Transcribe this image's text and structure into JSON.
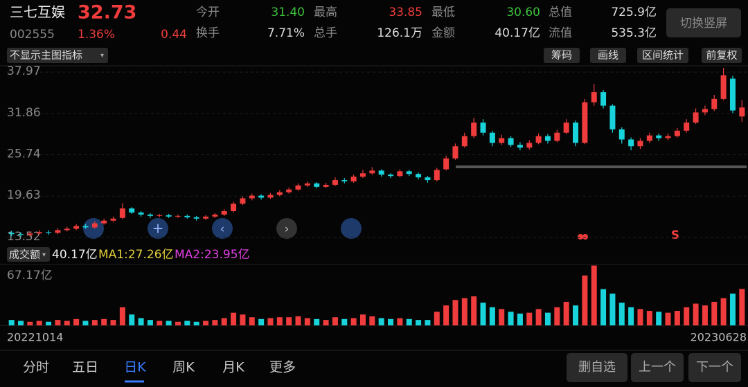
{
  "header": {
    "name": "三七互娱",
    "price": "32.73",
    "code": "002555",
    "change_pct": "1.36%",
    "change": "0.44",
    "stats": [
      {
        "label": "今开",
        "value": "31.40"
      },
      {
        "label": "最高",
        "value": "33.85"
      },
      {
        "label": "最低",
        "value": "30.60"
      },
      {
        "label": "总值",
        "value": "725.9亿"
      },
      {
        "label": "换手",
        "value": "7.71%"
      },
      {
        "label": "总手",
        "value": "126.1万"
      },
      {
        "label": "金额",
        "value": "40.17亿"
      },
      {
        "label": "流值",
        "value": "535.3亿"
      }
    ],
    "button": "切换竖屏"
  },
  "toolbar": {
    "indicator": "不显示主图指标",
    "buttons": [
      "筹码",
      "画线",
      "区间统计",
      "前复权"
    ]
  },
  "volume_header": {
    "label": "成交额",
    "value": "40.17亿",
    "ma1": "MA1:27.26亿",
    "ma2": "MA2:23.95亿"
  },
  "signal": "S",
  "tabs": [
    "分时",
    "五日",
    "日K",
    "周K",
    "月K",
    "更多"
  ],
  "actions": [
    "删自选",
    "上一个",
    "下一个"
  ],
  "chart_data": {
    "type": "candlestick",
    "categories": [
      "20221014",
      null,
      null,
      null,
      null,
      null,
      null,
      null,
      null,
      null,
      null,
      null,
      null,
      null,
      null,
      null,
      null,
      null,
      null,
      null,
      null,
      null,
      null,
      null,
      null,
      null,
      null,
      null,
      null,
      null,
      null,
      null,
      null,
      null,
      null,
      null,
      null,
      null,
      null,
      null,
      null,
      null,
      null,
      null,
      null,
      null,
      null,
      null,
      null,
      null,
      null,
      null,
      null,
      null,
      null,
      null,
      null,
      null,
      null,
      null,
      null,
      null,
      null,
      null,
      null,
      null,
      null,
      null,
      null,
      null,
      null,
      null,
      null,
      null,
      null,
      null,
      null,
      null,
      null,
      "20230628"
    ],
    "open": [
      14.2,
      14.0,
      13.9,
      14.1,
      14.3,
      14.2,
      14.6,
      14.8,
      15.2,
      15.0,
      15.6,
      16.0,
      16.4,
      17.8,
      17.2,
      16.9,
      16.7,
      16.8,
      16.6,
      16.7,
      16.5,
      16.3,
      16.6,
      16.9,
      17.4,
      18.5,
      19.3,
      19.7,
      19.4,
      19.8,
      20.2,
      20.6,
      21.2,
      21.5,
      21.0,
      21.3,
      22.0,
      21.8,
      22.5,
      23.0,
      23.4,
      22.8,
      22.6,
      23.3,
      22.9,
      22.4,
      22.0,
      23.6,
      25.2,
      27.0,
      28.5,
      30.5,
      29.0,
      27.5,
      28.2,
      27.2,
      26.8,
      27.5,
      28.5,
      27.8,
      29.0,
      30.5,
      27.5,
      33.5,
      35.0,
      33.0,
      29.5,
      28.0,
      27.0,
      27.8,
      28.6,
      28.2,
      28.5,
      29.3,
      30.5,
      32.0,
      32.5,
      34.0,
      37.0,
      31.4
    ],
    "high": [
      14.5,
      14.3,
      14.4,
      14.6,
      14.6,
      14.9,
      15.1,
      15.5,
      15.5,
      15.9,
      16.3,
      16.6,
      18.6,
      18.0,
      17.4,
      17.1,
      17.0,
      17.0,
      16.9,
      16.9,
      16.7,
      16.8,
      17.1,
      17.7,
      18.8,
      19.6,
      20.0,
      19.9,
      20.1,
      20.5,
      20.9,
      21.5,
      21.8,
      21.7,
      21.6,
      22.4,
      22.3,
      22.8,
      23.5,
      23.9,
      23.6,
      23.0,
      23.6,
      23.5,
      23.1,
      22.6,
      23.8,
      25.6,
      27.4,
      29.0,
      31.2,
      31.0,
      29.3,
      28.7,
      28.5,
      27.6,
      27.9,
      28.9,
      28.8,
      29.4,
      31.0,
      30.8,
      34.0,
      36.2,
      35.3,
      33.2,
      29.8,
      28.3,
      28.2,
      29.0,
      28.9,
      28.9,
      29.7,
      31.0,
      32.6,
      33.0,
      34.6,
      38.6,
      37.4,
      33.85
    ],
    "low": [
      13.7,
      13.6,
      13.6,
      13.9,
      13.9,
      14.0,
      14.4,
      14.6,
      14.8,
      14.8,
      15.4,
      15.8,
      16.2,
      17.0,
      16.6,
      16.4,
      16.5,
      16.4,
      16.4,
      16.3,
      16.0,
      16.1,
      16.4,
      16.7,
      17.2,
      18.3,
      19.0,
      19.1,
      19.2,
      19.6,
      20.0,
      20.4,
      21.0,
      20.8,
      20.8,
      21.1,
      21.5,
      21.6,
      22.3,
      22.8,
      22.5,
      22.3,
      22.4,
      22.6,
      22.1,
      21.6,
      21.8,
      23.4,
      25.0,
      26.8,
      28.2,
      28.6,
      27.0,
      27.2,
      26.9,
      26.4,
      26.5,
      27.3,
      27.4,
      27.6,
      28.8,
      27.0,
      27.3,
      33.0,
      32.6,
      29.0,
      27.4,
      26.4,
      26.6,
      27.5,
      27.8,
      27.9,
      28.3,
      29.0,
      30.3,
      31.6,
      32.2,
      33.8,
      31.9,
      30.6
    ],
    "close": [
      14.0,
      13.9,
      14.1,
      14.3,
      14.2,
      14.6,
      14.8,
      15.2,
      15.0,
      15.6,
      16.0,
      16.3,
      17.8,
      17.2,
      16.9,
      16.7,
      16.8,
      16.6,
      16.7,
      16.5,
      16.3,
      16.6,
      16.9,
      17.4,
      18.5,
      19.3,
      19.7,
      19.4,
      19.8,
      20.2,
      20.6,
      21.2,
      21.5,
      21.0,
      21.3,
      22.0,
      21.8,
      22.5,
      23.0,
      23.4,
      22.8,
      22.6,
      23.3,
      22.9,
      22.4,
      22.0,
      23.5,
      25.2,
      27.0,
      28.5,
      30.5,
      29.0,
      27.5,
      28.2,
      27.2,
      26.8,
      27.5,
      28.5,
      27.8,
      29.0,
      30.5,
      27.5,
      33.5,
      35.0,
      33.0,
      29.5,
      28.0,
      27.0,
      27.8,
      28.6,
      28.2,
      28.5,
      29.3,
      30.5,
      32.0,
      32.5,
      34.0,
      37.5,
      32.29,
      32.73
    ],
    "volume": [
      6,
      5,
      4,
      5,
      4,
      6,
      5,
      7,
      5,
      6,
      7,
      6,
      20,
      12,
      8,
      6,
      5,
      5,
      4,
      5,
      4,
      5,
      6,
      8,
      14,
      12,
      9,
      7,
      8,
      9,
      9,
      10,
      8,
      7,
      6,
      9,
      7,
      8,
      12,
      10,
      8,
      7,
      8,
      7,
      6,
      6,
      15,
      22,
      28,
      30,
      32,
      25,
      20,
      18,
      15,
      13,
      14,
      18,
      14,
      20,
      26,
      22,
      55,
      66,
      40,
      35,
      25,
      20,
      18,
      16,
      15,
      14,
      16,
      20,
      24,
      22,
      26,
      30,
      35,
      40.17
    ],
    "up_color": "#f03c3c",
    "down_color": "#19d3da",
    "ylim": [
      13.0,
      38.9
    ],
    "yticks": [
      37.97,
      31.86,
      25.74,
      19.63,
      13.52
    ],
    "vol_ylim": [
      0,
      67.17
    ],
    "vol_yticks": [
      {
        "value": 67.17,
        "label": "67.17亿"
      }
    ],
    "grid": true
  }
}
